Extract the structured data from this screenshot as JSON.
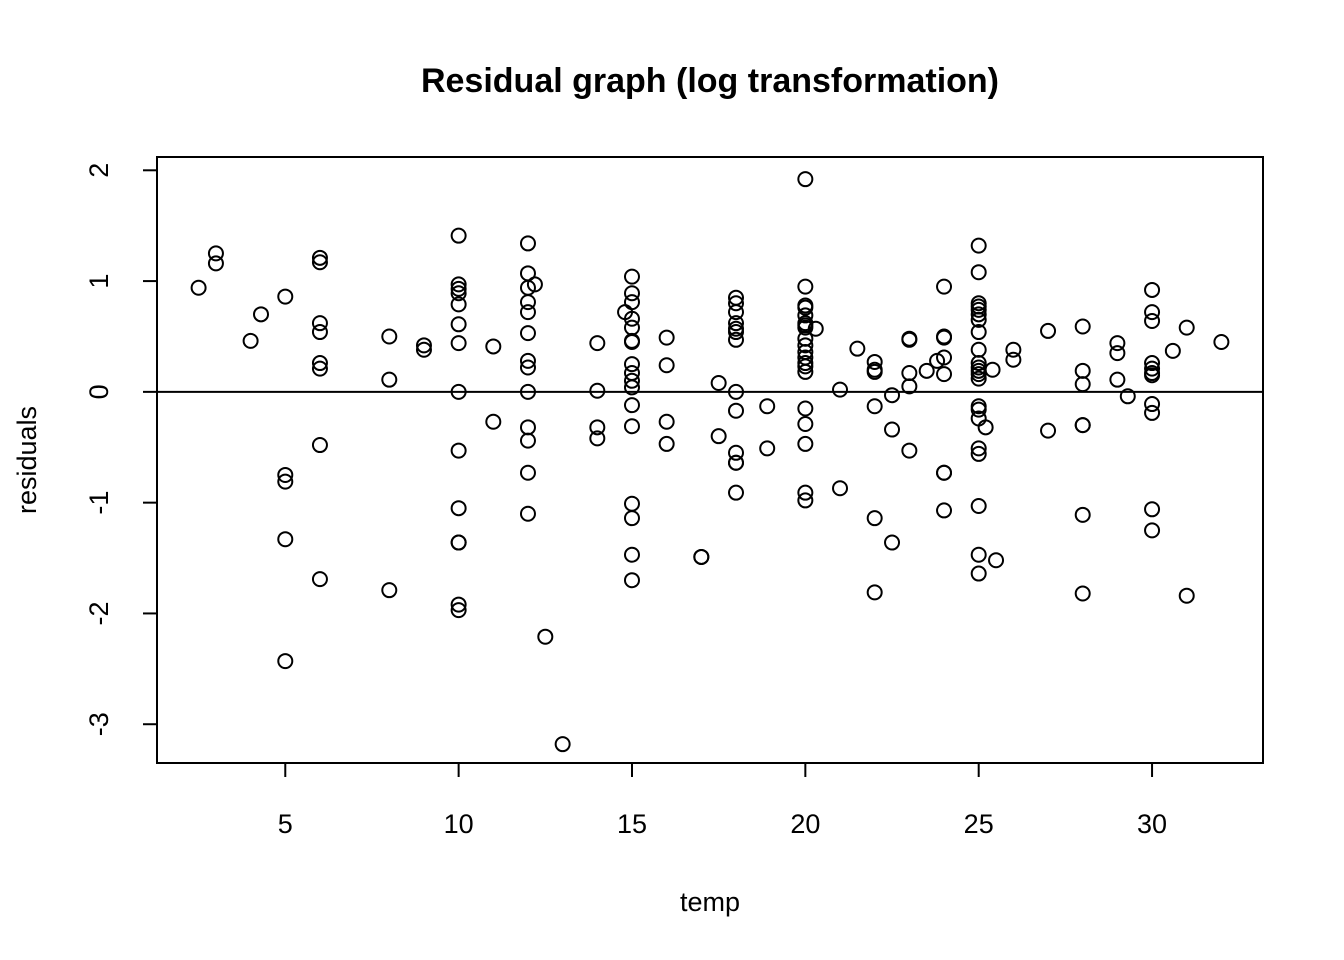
{
  "chart_data": {
    "type": "scatter",
    "title": "Residual graph (log transformation)",
    "xlabel": "temp",
    "ylabel": "residuals",
    "xlim": [
      1.3,
      33.2
    ],
    "ylim": [
      -3.35,
      2.12
    ],
    "xticks": [
      5,
      10,
      15,
      20,
      25,
      30
    ],
    "yticks": [
      -3,
      -2,
      -1,
      0,
      1,
      2
    ],
    "reference_line_y": 0,
    "grid": false,
    "legend": "none",
    "points": [
      [
        2.5,
        0.94
      ],
      [
        3,
        1.25
      ],
      [
        3,
        1.16
      ],
      [
        4,
        0.46
      ],
      [
        4.3,
        0.7
      ],
      [
        5,
        0.86
      ],
      [
        5,
        -0.75
      ],
      [
        5,
        -0.81
      ],
      [
        5,
        -1.33
      ],
      [
        5,
        -2.43
      ],
      [
        6,
        1.21
      ],
      [
        6,
        1.17
      ],
      [
        6,
        0.62
      ],
      [
        6,
        0.54
      ],
      [
        6,
        0.26
      ],
      [
        6,
        0.21
      ],
      [
        6,
        -0.48
      ],
      [
        6,
        -1.69
      ],
      [
        8,
        0.5
      ],
      [
        8,
        0.11
      ],
      [
        8,
        -1.79
      ],
      [
        9,
        0.42
      ],
      [
        9,
        0.38
      ],
      [
        10,
        1.41
      ],
      [
        10,
        0.97
      ],
      [
        10,
        0.93
      ],
      [
        10,
        0.89
      ],
      [
        10,
        0.79
      ],
      [
        10,
        0.61
      ],
      [
        10,
        0.44
      ],
      [
        10,
        0.0
      ],
      [
        10,
        -0.53
      ],
      [
        10,
        -1.05
      ],
      [
        10,
        -1.36
      ],
      [
        10,
        -1.36
      ],
      [
        10,
        -1.92
      ],
      [
        10,
        -1.97
      ],
      [
        11,
        0.41
      ],
      [
        11,
        -0.27
      ],
      [
        12,
        1.34
      ],
      [
        12,
        1.07
      ],
      [
        12,
        0.94
      ],
      [
        12,
        0.81
      ],
      [
        12,
        0.72
      ],
      [
        12,
        0.53
      ],
      [
        12,
        0.28
      ],
      [
        12,
        0.22
      ],
      [
        12,
        0.0
      ],
      [
        12,
        -0.32
      ],
      [
        12,
        -0.44
      ],
      [
        12,
        -0.73
      ],
      [
        12,
        -1.1
      ],
      [
        12.2,
        0.97
      ],
      [
        12.5,
        -2.21
      ],
      [
        13,
        -3.18
      ],
      [
        14,
        0.44
      ],
      [
        14,
        0.01
      ],
      [
        14,
        -0.32
      ],
      [
        14,
        -0.42
      ],
      [
        14.8,
        0.72
      ],
      [
        15,
        1.04
      ],
      [
        15,
        0.89
      ],
      [
        15,
        0.81
      ],
      [
        15,
        0.66
      ],
      [
        15,
        0.58
      ],
      [
        15,
        0.46
      ],
      [
        15,
        0.45
      ],
      [
        15,
        0.25
      ],
      [
        15,
        0.17
      ],
      [
        15,
        0.1
      ],
      [
        15,
        0.04
      ],
      [
        15,
        -0.12
      ],
      [
        15,
        -0.31
      ],
      [
        15,
        -1.01
      ],
      [
        15,
        -1.14
      ],
      [
        15,
        -1.47
      ],
      [
        15,
        -1.7
      ],
      [
        16,
        0.49
      ],
      [
        16,
        0.24
      ],
      [
        16,
        -0.27
      ],
      [
        16,
        -0.47
      ],
      [
        17,
        -1.49
      ],
      [
        17,
        -1.49
      ],
      [
        17.5,
        0.08
      ],
      [
        17.5,
        -0.4
      ],
      [
        18,
        0.85
      ],
      [
        18,
        0.8
      ],
      [
        18,
        0.72
      ],
      [
        18,
        0.62
      ],
      [
        18,
        0.57
      ],
      [
        18,
        0.54
      ],
      [
        18,
        0.47
      ],
      [
        18,
        0.0
      ],
      [
        18,
        -0.17
      ],
      [
        18,
        -0.55
      ],
      [
        18,
        -0.64
      ],
      [
        18,
        -0.64
      ],
      [
        18,
        -0.91
      ],
      [
        18.9,
        -0.13
      ],
      [
        18.9,
        -0.51
      ],
      [
        20,
        1.92
      ],
      [
        20,
        0.95
      ],
      [
        20,
        0.78
      ],
      [
        20,
        0.76
      ],
      [
        20,
        0.69
      ],
      [
        20,
        0.62
      ],
      [
        20,
        0.6
      ],
      [
        20,
        0.58
      ],
      [
        20,
        0.48
      ],
      [
        20,
        0.42
      ],
      [
        20,
        0.36
      ],
      [
        20,
        0.31
      ],
      [
        20,
        0.26
      ],
      [
        20,
        0.23
      ],
      [
        20,
        0.18
      ],
      [
        20,
        -0.15
      ],
      [
        20,
        -0.29
      ],
      [
        20,
        -0.47
      ],
      [
        20,
        -0.91
      ],
      [
        20,
        -0.98
      ],
      [
        20.3,
        0.57
      ],
      [
        21,
        0.02
      ],
      [
        21,
        -0.87
      ],
      [
        21.5,
        0.39
      ],
      [
        22,
        0.27
      ],
      [
        22,
        0.2
      ],
      [
        22,
        0.18
      ],
      [
        22,
        -0.13
      ],
      [
        22,
        -1.14
      ],
      [
        22,
        -1.81
      ],
      [
        22.5,
        -0.03
      ],
      [
        22.5,
        -0.34
      ],
      [
        22.5,
        -1.36
      ],
      [
        23,
        0.48
      ],
      [
        23,
        0.47
      ],
      [
        23,
        0.17
      ],
      [
        23,
        0.05
      ],
      [
        23,
        -0.53
      ],
      [
        23.5,
        0.19
      ],
      [
        23.8,
        0.28
      ],
      [
        24,
        0.95
      ],
      [
        24,
        0.5
      ],
      [
        24,
        0.49
      ],
      [
        24,
        0.31
      ],
      [
        24,
        0.16
      ],
      [
        24,
        -0.73
      ],
      [
        24,
        -0.73
      ],
      [
        24,
        -1.07
      ],
      [
        25,
        1.32
      ],
      [
        25,
        1.08
      ],
      [
        25,
        0.8
      ],
      [
        25,
        0.77
      ],
      [
        25,
        0.74
      ],
      [
        25,
        0.7
      ],
      [
        25,
        0.65
      ],
      [
        25,
        0.54
      ],
      [
        25,
        0.38
      ],
      [
        25,
        0.26
      ],
      [
        25,
        0.22
      ],
      [
        25,
        0.19
      ],
      [
        25,
        0.16
      ],
      [
        25,
        0.12
      ],
      [
        25,
        -0.13
      ],
      [
        25,
        -0.16
      ],
      [
        25,
        -0.24
      ],
      [
        25,
        -0.51
      ],
      [
        25,
        -0.56
      ],
      [
        25,
        -1.03
      ],
      [
        25,
        -1.47
      ],
      [
        25,
        -1.64
      ],
      [
        25.2,
        -0.32
      ],
      [
        25.4,
        0.2
      ],
      [
        25.5,
        -1.52
      ],
      [
        26,
        0.38
      ],
      [
        26,
        0.29
      ],
      [
        27,
        0.55
      ],
      [
        27,
        -0.35
      ],
      [
        28,
        0.59
      ],
      [
        28,
        0.19
      ],
      [
        28,
        0.07
      ],
      [
        28,
        -0.3
      ],
      [
        28,
        -0.3
      ],
      [
        28,
        -1.11
      ],
      [
        28,
        -1.82
      ],
      [
        29,
        0.44
      ],
      [
        29,
        0.35
      ],
      [
        29,
        0.11
      ],
      [
        29.3,
        -0.04
      ],
      [
        30,
        0.92
      ],
      [
        30,
        0.72
      ],
      [
        30,
        0.64
      ],
      [
        30,
        0.26
      ],
      [
        30,
        0.21
      ],
      [
        30,
        0.17
      ],
      [
        30,
        0.15
      ],
      [
        30,
        -0.11
      ],
      [
        30,
        -0.19
      ],
      [
        30,
        -1.06
      ],
      [
        30,
        -1.25
      ],
      [
        30.6,
        0.37
      ],
      [
        31,
        0.58
      ],
      [
        31,
        -1.84
      ],
      [
        32,
        0.45
      ]
    ]
  }
}
